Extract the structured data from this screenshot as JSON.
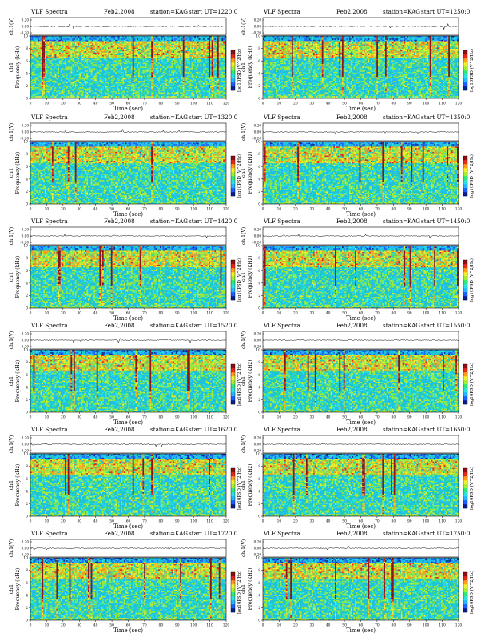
{
  "page": {
    "label_vlf": "VLF Spectra",
    "label_station": "station=KAG",
    "label_start": "start UT"
  },
  "colors": {
    "background": "#1ec8c8",
    "scale": [
      "#08208c",
      "#1f5cff",
      "#23b7ff",
      "#27e3e3",
      "#2ee87a",
      "#9eef35",
      "#f0ef2a",
      "#ff9c1a",
      "#e8281a",
      "#8e1010"
    ]
  },
  "chart_data": [
    {
      "type": "heatmap",
      "date": "Feb2,2008",
      "station": "KAG",
      "start_ut": "=1220:0",
      "amp_label": "ch.1(V)",
      "amp_ticks": [
        "0.20",
        "0.00",
        "-0.20"
      ],
      "ylabel": "Frequency (kHz)",
      "channel": "ch1",
      "xlabel": "Time (sec)",
      "xlim": [
        0,
        120
      ],
      "x_ticks": [
        0,
        10,
        20,
        30,
        40,
        50,
        60,
        70,
        80,
        90,
        100,
        110,
        120
      ],
      "ylim": [
        0,
        10
      ],
      "y_ticks": [
        0,
        2,
        4,
        6,
        8,
        10
      ],
      "colorbar_label": "log10PSD (V^2/Hz)"
    },
    {
      "type": "heatmap",
      "date": "Feb2,2008",
      "station": "KAG",
      "start_ut": "=1250:0",
      "amp_label": "ch.1(V)",
      "amp_ticks": [
        "0.20",
        "0.00",
        "-0.20"
      ],
      "ylabel": "Frequency (kHz)",
      "channel": "ch1",
      "xlabel": "Time (sec)",
      "xlim": [
        0,
        120
      ],
      "x_ticks": [
        0,
        10,
        20,
        30,
        40,
        50,
        60,
        70,
        80,
        90,
        100,
        110,
        120
      ],
      "ylim": [
        0,
        10
      ],
      "y_ticks": [
        0,
        2,
        4,
        6,
        8,
        10
      ],
      "colorbar_label": "log10PSD (V^2/Hz)"
    },
    {
      "type": "heatmap",
      "date": "Feb2,2008",
      "station": "KAG",
      "start_ut": "=1320:0",
      "amp_label": "ch.1(V)",
      "amp_ticks": [
        "0.20",
        "0.00",
        "-0.20"
      ],
      "ylabel": "Frequency (kHz)",
      "channel": "ch1",
      "xlabel": "Time (sec)",
      "xlim": [
        0,
        120
      ],
      "x_ticks": [
        0,
        10,
        20,
        30,
        40,
        50,
        60,
        70,
        80,
        90,
        100,
        110,
        120
      ],
      "ylim": [
        0,
        10
      ],
      "y_ticks": [
        0,
        2,
        4,
        6,
        8,
        10
      ],
      "colorbar_label": "log10PSD (V^2/Hz)"
    },
    {
      "type": "heatmap",
      "date": "Feb2,2008",
      "station": "KAG",
      "start_ut": "=1350:0",
      "amp_label": "ch.1(V)",
      "amp_ticks": [
        "0.20",
        "0.00",
        "-0.20"
      ],
      "ylabel": "Frequency (kHz)",
      "channel": "ch1",
      "xlabel": "Time (sec)",
      "xlim": [
        0,
        120
      ],
      "x_ticks": [
        0,
        10,
        20,
        30,
        40,
        50,
        60,
        70,
        80,
        90,
        100,
        110,
        120
      ],
      "ylim": [
        0,
        10
      ],
      "y_ticks": [
        0,
        2,
        4,
        6,
        8,
        10
      ],
      "colorbar_label": "log10PSD (V^2/Hz)"
    },
    {
      "type": "heatmap",
      "date": "Feb2,2008",
      "station": "KAG",
      "start_ut": "=1420:0",
      "amp_label": "ch.1(V)",
      "amp_ticks": [
        "0.20",
        "0.00",
        "-0.20"
      ],
      "ylabel": "Frequency (kHz)",
      "channel": "ch1",
      "xlabel": "Time (sec)",
      "xlim": [
        0,
        120
      ],
      "x_ticks": [
        0,
        10,
        20,
        30,
        40,
        50,
        60,
        70,
        80,
        90,
        100,
        110,
        120
      ],
      "ylim": [
        0,
        10
      ],
      "y_ticks": [
        0,
        2,
        4,
        6,
        8,
        10
      ],
      "colorbar_label": "log10PSD (V^2/Hz)"
    },
    {
      "type": "heatmap",
      "date": "Feb2,2008",
      "station": "KAG",
      "start_ut": "=1450:0",
      "amp_label": "ch.1(V)",
      "amp_ticks": [
        "0.20",
        "0.00",
        "-0.20"
      ],
      "ylabel": "Frequency (kHz)",
      "channel": "ch1",
      "xlabel": "Time (sec)",
      "xlim": [
        0,
        120
      ],
      "x_ticks": [
        0,
        10,
        20,
        30,
        40,
        50,
        60,
        70,
        80,
        90,
        100,
        110,
        120
      ],
      "ylim": [
        0,
        10
      ],
      "y_ticks": [
        0,
        2,
        4,
        6,
        8,
        10
      ],
      "colorbar_label": "log10PSD (V^2/Hz)"
    },
    {
      "type": "heatmap",
      "date": "Feb2,2008",
      "station": "KAG",
      "start_ut": "=1520:0",
      "amp_label": "ch.1(V)",
      "amp_ticks": [
        "0.20",
        "0.00",
        "-0.20"
      ],
      "ylabel": "Frequency (kHz)",
      "channel": "ch1",
      "xlabel": "Time (sec)",
      "xlim": [
        0,
        120
      ],
      "x_ticks": [
        0,
        10,
        20,
        30,
        40,
        50,
        60,
        70,
        80,
        90,
        100,
        110,
        120
      ],
      "ylim": [
        0,
        10
      ],
      "y_ticks": [
        0,
        2,
        4,
        6,
        8,
        10
      ],
      "colorbar_label": "log10PSD (V^2/Hz)"
    },
    {
      "type": "heatmap",
      "date": "Feb2,2008",
      "station": "KAG",
      "start_ut": "=1550:0",
      "amp_label": "ch.1(V)",
      "amp_ticks": [
        "0.20",
        "0.00",
        "-0.20"
      ],
      "ylabel": "Frequency (kHz)",
      "channel": "ch1",
      "xlabel": "Time (sec)",
      "xlim": [
        0,
        120
      ],
      "x_ticks": [
        0,
        10,
        20,
        30,
        40,
        50,
        60,
        70,
        80,
        90,
        100,
        110,
        120
      ],
      "ylim": [
        0,
        10
      ],
      "y_ticks": [
        0,
        2,
        4,
        6,
        8,
        10
      ],
      "colorbar_label": "log10PSD (V^2/Hz)"
    },
    {
      "type": "heatmap",
      "date": "Feb2,2008",
      "station": "KAG",
      "start_ut": "=1620:0",
      "amp_label": "ch.1(V)",
      "amp_ticks": [
        "0.20",
        "0.00",
        "-0.20"
      ],
      "ylabel": "Frequency (kHz)",
      "channel": "ch1",
      "xlabel": "Time (sec)",
      "xlim": [
        0,
        120
      ],
      "x_ticks": [
        0,
        10,
        20,
        30,
        40,
        50,
        60,
        70,
        80,
        90,
        100,
        110,
        120
      ],
      "ylim": [
        0,
        10
      ],
      "y_ticks": [
        0,
        2,
        4,
        6,
        8,
        10
      ],
      "colorbar_label": "log10PSD (V^2/Hz)"
    },
    {
      "type": "heatmap",
      "date": "Feb2,2008",
      "station": "KAG",
      "start_ut": "=1650:0",
      "amp_label": "ch.1(V)",
      "amp_ticks": [
        "0.20",
        "0.00",
        "-0.20"
      ],
      "ylabel": "Frequency (kHz)",
      "channel": "ch1",
      "xlabel": "Time (sec)",
      "xlim": [
        0,
        120
      ],
      "x_ticks": [
        0,
        10,
        20,
        30,
        40,
        50,
        60,
        70,
        80,
        90,
        100,
        110,
        120
      ],
      "ylim": [
        0,
        10
      ],
      "y_ticks": [
        0,
        2,
        4,
        6,
        8,
        10
      ],
      "colorbar_label": "log10PSD (V^2/Hz)"
    },
    {
      "type": "heatmap",
      "date": "Feb2,2008",
      "station": "KAG",
      "start_ut": "=1720:0",
      "amp_label": "ch.1(V)",
      "amp_ticks": [
        "0.20",
        "0.00",
        "-0.20"
      ],
      "ylabel": "Frequency (kHz)",
      "channel": "ch1",
      "xlabel": "Time (sec)",
      "xlim": [
        0,
        120
      ],
      "x_ticks": [
        0,
        10,
        20,
        30,
        40,
        50,
        60,
        70,
        80,
        90,
        100,
        110,
        120
      ],
      "ylim": [
        0,
        10
      ],
      "y_ticks": [
        0,
        2,
        4,
        6,
        8,
        10
      ],
      "colorbar_label": "log10PSD (V^2/Hz)"
    },
    {
      "type": "heatmap",
      "date": "Feb2,2008",
      "station": "KAG",
      "start_ut": "=1750:0",
      "amp_label": "ch.1(V)",
      "amp_ticks": [
        "0.20",
        "0.00",
        "-0.20"
      ],
      "ylabel": "Frequency (kHz)",
      "channel": "ch1",
      "xlabel": "Time (sec)",
      "xlim": [
        0,
        120
      ],
      "x_ticks": [
        0,
        10,
        20,
        30,
        40,
        50,
        60,
        70,
        80,
        90,
        100,
        110,
        120
      ],
      "ylim": [
        0,
        10
      ],
      "y_ticks": [
        0,
        2,
        4,
        6,
        8,
        10
      ],
      "colorbar_label": "log10PSD (V^2/Hz)"
    }
  ]
}
